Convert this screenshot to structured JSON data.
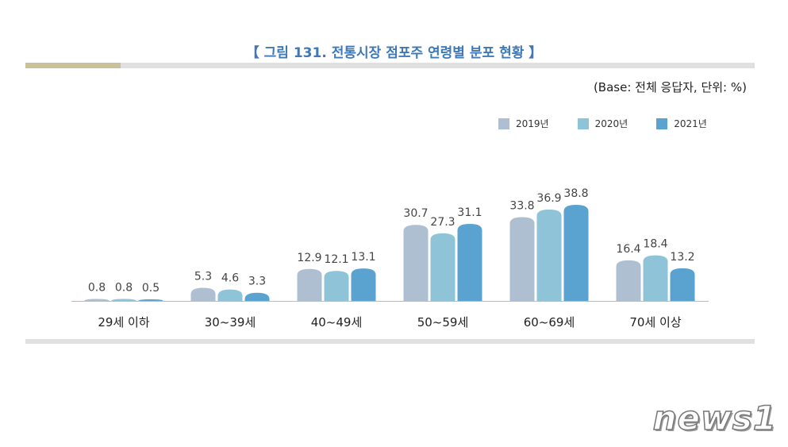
{
  "title": "【 그림 131. 전통시장 점포주 연령별 분포 현황 】",
  "base_note": "(Base: 전체 응답자, 단위: %)",
  "watermark": "news1",
  "chart_data": {
    "type": "bar",
    "categories": [
      "29세 이하",
      "30~39세",
      "40~49세",
      "50~59세",
      "60~69세",
      "70세 이상"
    ],
    "series": [
      {
        "name": "2019년",
        "color": "#adbfd0",
        "values": [
          0.8,
          5.3,
          12.9,
          30.7,
          33.8,
          16.4
        ]
      },
      {
        "name": "2020년",
        "color": "#8fc3d8",
        "values": [
          0.8,
          4.6,
          12.1,
          27.3,
          36.9,
          18.4
        ]
      },
      {
        "name": "2021년",
        "color": "#5aa2cf",
        "values": [
          0.5,
          3.3,
          13.1,
          31.1,
          38.8,
          13.2
        ]
      }
    ],
    "ylim": [
      0,
      40
    ],
    "grid": false,
    "legend": "top-right",
    "unit": "%"
  }
}
